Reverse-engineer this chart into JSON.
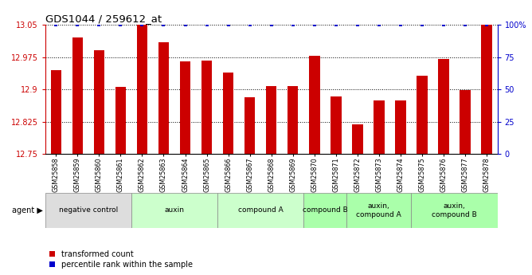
{
  "title": "GDS1044 / 259612_at",
  "samples": [
    "GSM25858",
    "GSM25859",
    "GSM25860",
    "GSM25861",
    "GSM25862",
    "GSM25863",
    "GSM25864",
    "GSM25865",
    "GSM25866",
    "GSM25867",
    "GSM25868",
    "GSM25869",
    "GSM25870",
    "GSM25871",
    "GSM25872",
    "GSM25873",
    "GSM25874",
    "GSM25875",
    "GSM25876",
    "GSM25877",
    "GSM25878"
  ],
  "bar_values": [
    12.945,
    13.02,
    12.99,
    12.905,
    13.05,
    13.01,
    12.965,
    12.967,
    12.94,
    12.882,
    12.907,
    12.908,
    12.978,
    12.884,
    12.818,
    12.875,
    12.874,
    12.932,
    12.97,
    12.898,
    13.05
  ],
  "percentile_values": [
    100,
    100,
    100,
    100,
    100,
    100,
    100,
    100,
    100,
    100,
    100,
    100,
    100,
    100,
    100,
    100,
    100,
    100,
    100,
    100,
    100
  ],
  "ylim_left": [
    12.75,
    13.05
  ],
  "ylim_right": [
    0,
    100
  ],
  "bar_color": "#cc0000",
  "percentile_color": "#0000cc",
  "background_color": "#ffffff",
  "agent_groups": [
    {
      "label": "negative control",
      "start": 0,
      "end": 3,
      "color": "#dddddd"
    },
    {
      "label": "auxin",
      "start": 4,
      "end": 7,
      "color": "#ccffcc"
    },
    {
      "label": "compound A",
      "start": 8,
      "end": 11,
      "color": "#ccffcc"
    },
    {
      "label": "compound B",
      "start": 12,
      "end": 13,
      "color": "#aaffaa"
    },
    {
      "label": "auxin,\ncompound A",
      "start": 14,
      "end": 16,
      "color": "#aaffaa"
    },
    {
      "label": "auxin,\ncompound B",
      "start": 17,
      "end": 20,
      "color": "#aaffaa"
    }
  ],
  "yticks_left": [
    12.75,
    12.825,
    12.9,
    12.975,
    13.05
  ],
  "yticks_right": [
    0,
    25,
    50,
    75,
    100
  ],
  "ytick_labels_right": [
    "0",
    "25",
    "50",
    "75",
    "100%"
  ]
}
